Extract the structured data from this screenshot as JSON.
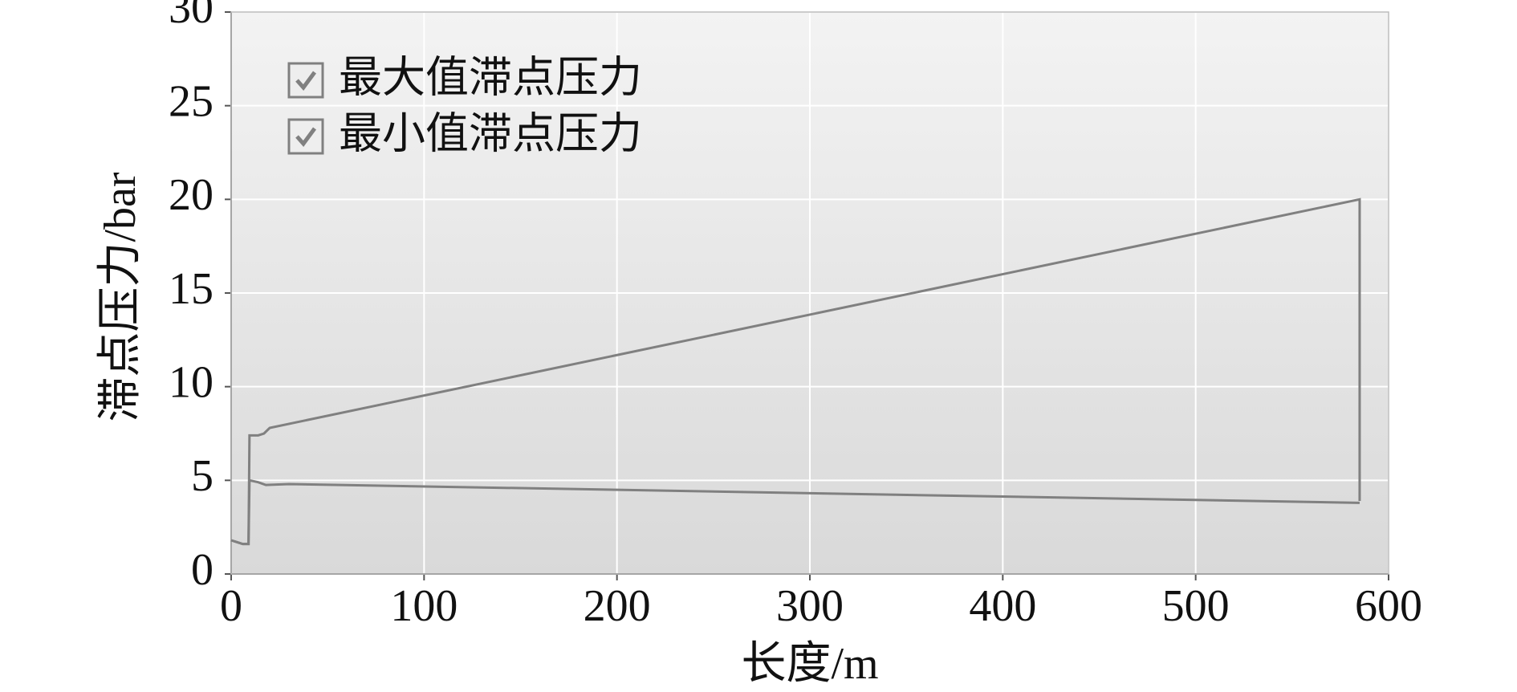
{
  "chart_data": {
    "type": "line",
    "xlabel": "长度/m",
    "ylabel": "滞点压力/bar",
    "xlim": [
      0,
      600
    ],
    "ylim": [
      0,
      30
    ],
    "xticks": [
      0,
      100,
      200,
      300,
      400,
      500,
      600
    ],
    "yticks": [
      0,
      5,
      10,
      15,
      20,
      25,
      30
    ],
    "grid": true,
    "legend": "upper left",
    "series": [
      {
        "name": "最大值滞点压力",
        "color": "#808080",
        "x": [
          0,
          3,
          6,
          9,
          9.5,
          14,
          17,
          20,
          585,
          585
        ],
        "values": [
          1.8,
          1.7,
          1.6,
          1.6,
          7.4,
          7.4,
          7.5,
          7.8,
          20,
          3.9
        ]
      },
      {
        "name": "最小值滞点压力",
        "color": "#808080",
        "x": [
          0,
          3,
          6,
          9,
          9.5,
          14,
          18,
          30,
          585
        ],
        "values": [
          1.8,
          1.7,
          1.6,
          1.6,
          5.0,
          4.9,
          4.75,
          4.8,
          3.8
        ]
      }
    ]
  }
}
